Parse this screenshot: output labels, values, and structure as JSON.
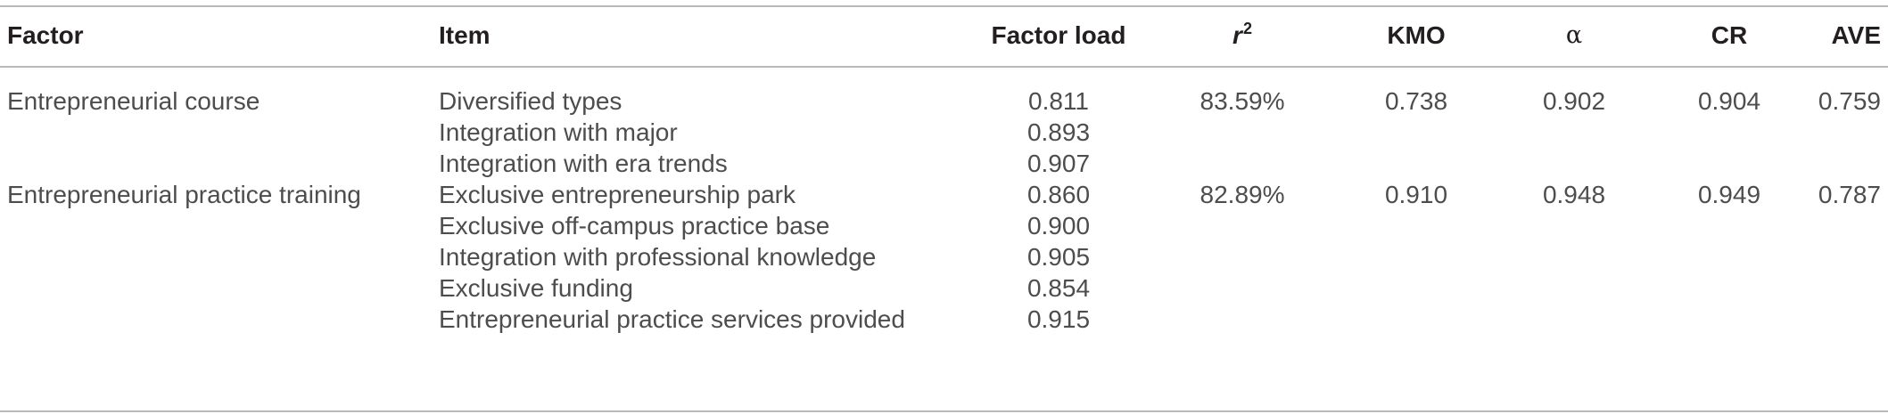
{
  "table": {
    "headers": {
      "factor": "Factor",
      "item": "Item",
      "factor_load": "Factor load",
      "r2_base": "r",
      "r2_sup": "2",
      "kmo": "KMO",
      "alpha": "α",
      "cr": "CR",
      "ave": "AVE"
    },
    "rows": [
      {
        "factor": "Entrepreneurial course",
        "item": "Diversified types",
        "load": "0.811",
        "r2": "83.59%",
        "kmo": "0.738",
        "alpha": "0.902",
        "cr": "0.904",
        "ave": "0.759"
      },
      {
        "factor": "",
        "item": "Integration with major",
        "load": "0.893",
        "r2": "",
        "kmo": "",
        "alpha": "",
        "cr": "",
        "ave": ""
      },
      {
        "factor": "",
        "item": "Integration with era trends",
        "load": "0.907",
        "r2": "",
        "kmo": "",
        "alpha": "",
        "cr": "",
        "ave": ""
      },
      {
        "factor": "Entrepreneurial practice training",
        "item": "Exclusive entrepreneurship park",
        "load": "0.860",
        "r2": "82.89%",
        "kmo": "0.910",
        "alpha": "0.948",
        "cr": "0.949",
        "ave": "0.787"
      },
      {
        "factor": "",
        "item": "Exclusive off-campus practice base",
        "load": "0.900",
        "r2": "",
        "kmo": "",
        "alpha": "",
        "cr": "",
        "ave": ""
      },
      {
        "factor": "",
        "item": "Integration with professional knowledge",
        "load": "0.905",
        "r2": "",
        "kmo": "",
        "alpha": "",
        "cr": "",
        "ave": ""
      },
      {
        "factor": "",
        "item": "Exclusive funding",
        "load": "0.854",
        "r2": "",
        "kmo": "",
        "alpha": "",
        "cr": "",
        "ave": ""
      },
      {
        "factor": "",
        "item": "Entrepreneurial practice services provided",
        "load": "0.915",
        "r2": "",
        "kmo": "",
        "alpha": "",
        "cr": "",
        "ave": ""
      }
    ]
  }
}
